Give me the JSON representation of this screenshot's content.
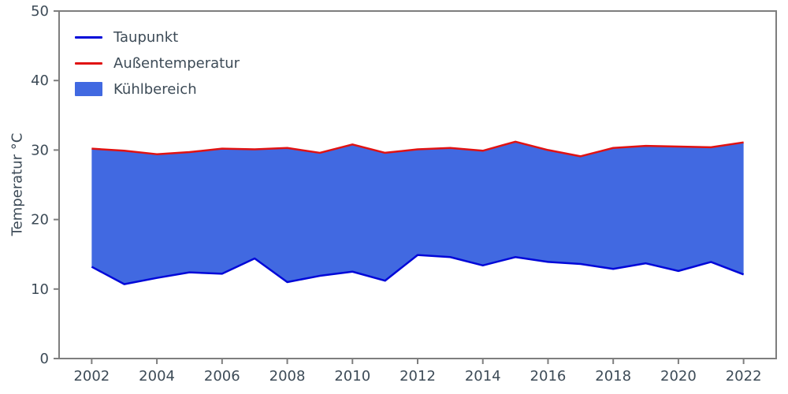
{
  "figure": {
    "ylabel": "Temperatur °C",
    "colors": {
      "taupunkt": "#0007d8",
      "aussentemperatur": "#e01212",
      "fill": "#4169e1",
      "spine": "#7e7e7e",
      "text": "#3d4b57"
    }
  },
  "legend": {
    "items": [
      {
        "label": "Taupunkt",
        "type": "line",
        "color": "#0007d8"
      },
      {
        "label": "Außentemperatur",
        "type": "line",
        "color": "#e01212"
      },
      {
        "label": "Kühlbereich",
        "type": "patch",
        "color": "#4169e1"
      }
    ]
  },
  "chart_data": {
    "type": "area",
    "title": "",
    "xlabel": "",
    "ylabel": "Temperatur °C",
    "x": [
      2002,
      2003,
      2004,
      2005,
      2006,
      2007,
      2008,
      2009,
      2010,
      2011,
      2012,
      2013,
      2014,
      2015,
      2016,
      2017,
      2018,
      2019,
      2020,
      2021,
      2022
    ],
    "series": [
      {
        "name": "Taupunkt",
        "values": [
          13.2,
          10.7,
          11.6,
          12.4,
          12.2,
          14.4,
          11.0,
          11.9,
          12.5,
          11.2,
          14.9,
          14.6,
          13.4,
          14.6,
          13.9,
          13.6,
          12.9,
          13.7,
          12.6,
          13.9,
          12.1
        ]
      },
      {
        "name": "Außentemperatur",
        "values": [
          30.2,
          29.9,
          29.4,
          29.7,
          30.2,
          30.1,
          30.3,
          29.6,
          30.8,
          29.6,
          30.1,
          30.3,
          29.9,
          31.2,
          30.0,
          29.1,
          30.3,
          30.6,
          30.5,
          30.4,
          31.1
        ]
      }
    ],
    "fill_between": [
      "Taupunkt",
      "Außentemperatur"
    ],
    "fill_label": "Kühlbereich",
    "ylim": [
      0,
      50
    ],
    "xlim": [
      2001,
      2023
    ],
    "yticks": [
      0,
      10,
      20,
      30,
      40,
      50
    ],
    "xticks": [
      2002,
      2004,
      2006,
      2008,
      2010,
      2012,
      2014,
      2016,
      2018,
      2020,
      2022
    ],
    "grid": false,
    "legend_position": "upper left"
  }
}
